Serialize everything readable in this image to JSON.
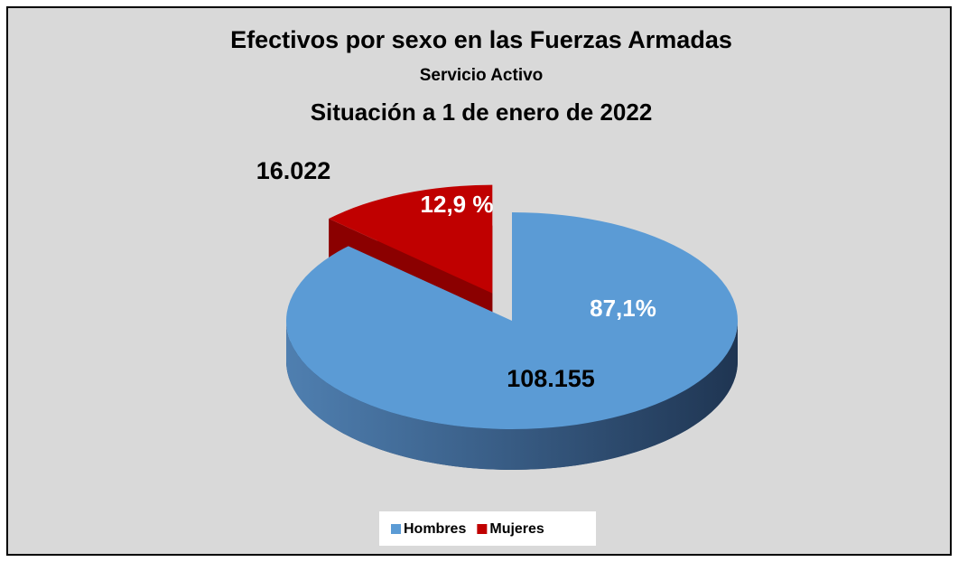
{
  "chart_data": {
    "type": "pie",
    "title": "Efectivos por sexo en las Fuerzas Armadas",
    "subtitle": "Servicio Activo",
    "subtitle_2": "Situación a 1 de enero de 2022",
    "categories": [
      "Hombres",
      "Mujeres"
    ],
    "values": [
      108155,
      16022
    ],
    "value_labels": [
      "108.155",
      "16.022"
    ],
    "percent_labels": [
      "87,1%",
      "12,9 %"
    ],
    "colors": [
      "#5b9bd5",
      "#c00000"
    ],
    "legend": "bottom"
  }
}
